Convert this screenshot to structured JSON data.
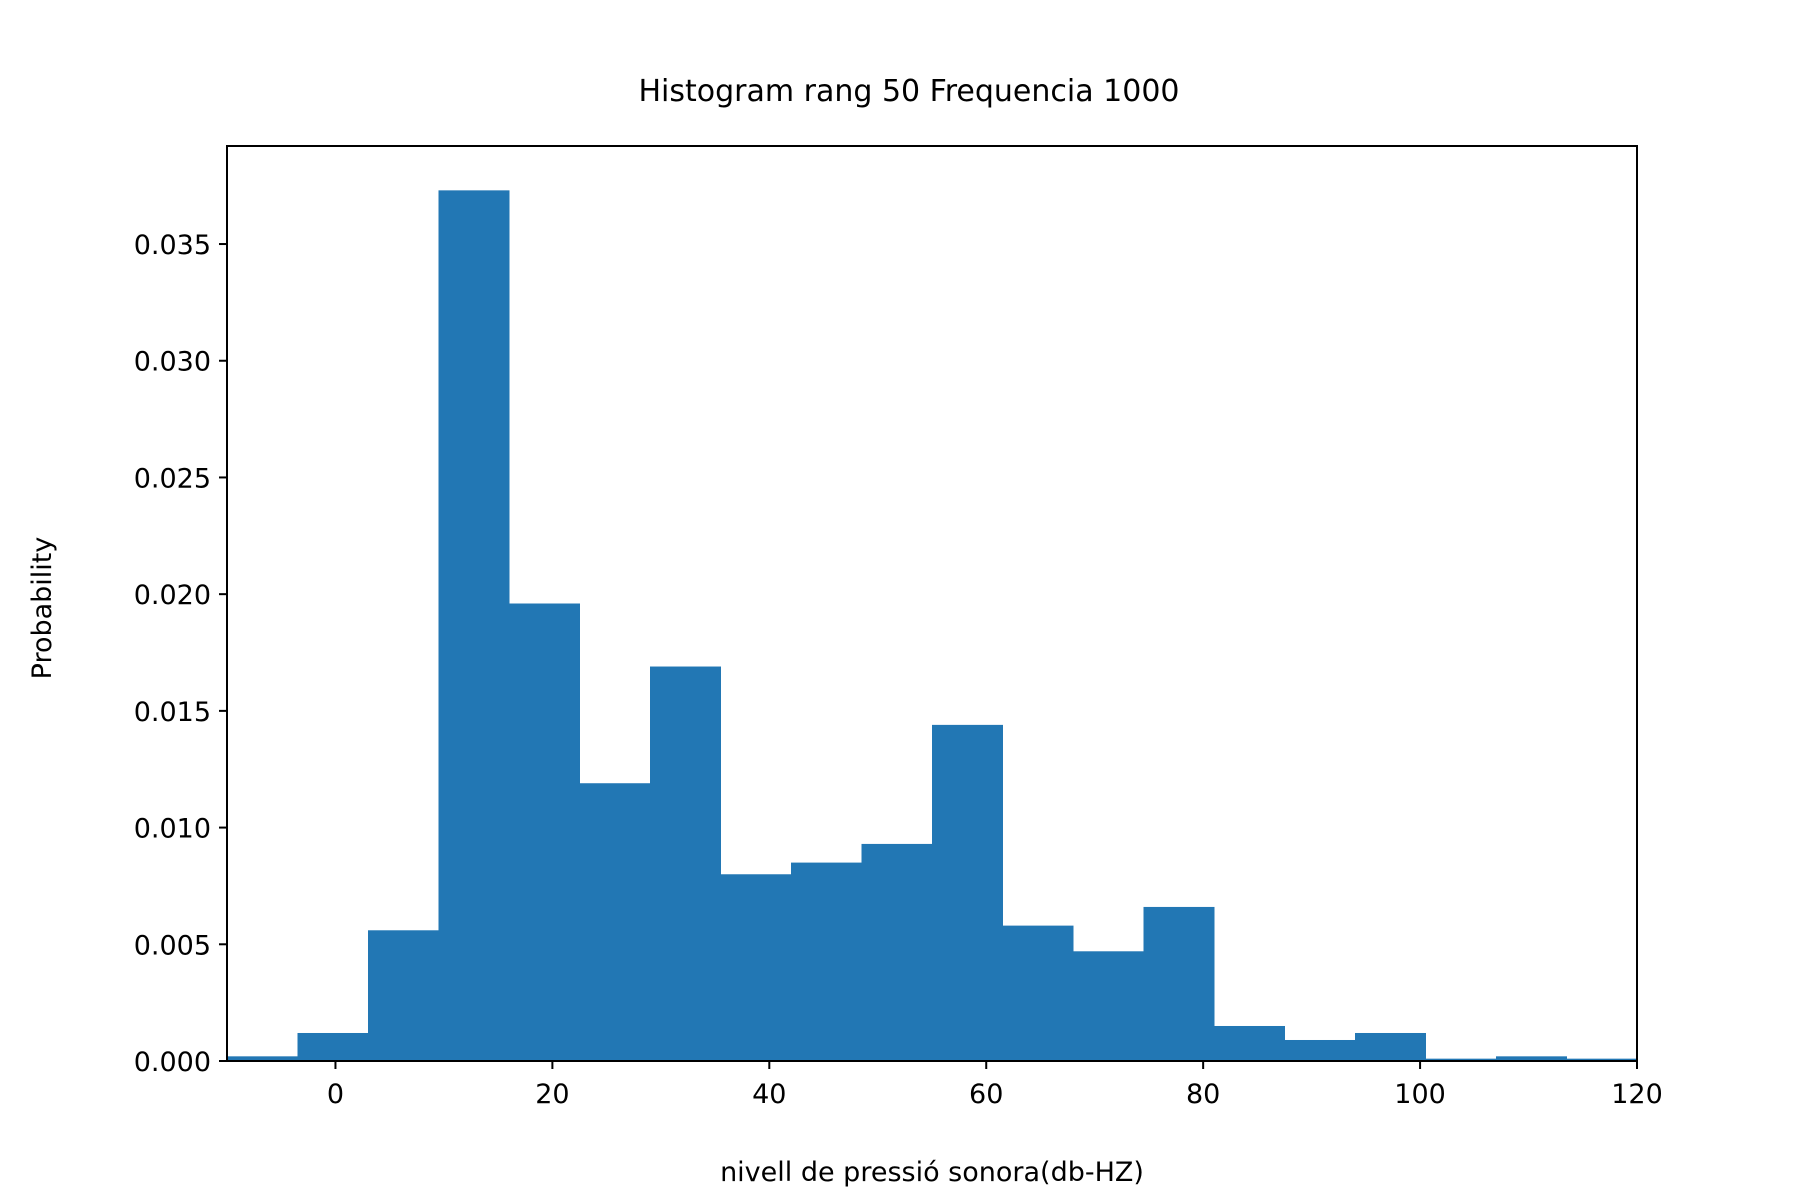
{
  "chart_data": {
    "type": "histogram",
    "title": "Histogram rang 50 Frequencia 1000",
    "xlabel": "nivell de pressió sonora(db-HZ)",
    "ylabel": "Probability",
    "xlim": [
      -10,
      120
    ],
    "ylim": [
      0,
      0.0392
    ],
    "xticks": [
      0,
      20,
      40,
      60,
      80,
      100,
      120
    ],
    "xtick_labels": [
      "0",
      "20",
      "40",
      "60",
      "80",
      "100",
      "120"
    ],
    "yticks": [
      0,
      0.005,
      0.01,
      0.015,
      0.02,
      0.025,
      0.03,
      0.035
    ],
    "ytick_labels": [
      "0.000",
      "0.005",
      "0.010",
      "0.015",
      "0.020",
      "0.025",
      "0.030",
      "0.035"
    ],
    "bin_edges": [
      -10.0,
      -3.5,
      3.0,
      9.5,
      16.0,
      22.5,
      29.0,
      35.5,
      42.0,
      48.5,
      55.0,
      61.5,
      68.0,
      74.5,
      81.0,
      87.5,
      94.0,
      100.5,
      107.0,
      113.5,
      120.0
    ],
    "values": [
      0.0002,
      0.0012,
      0.0056,
      0.0373,
      0.0196,
      0.0119,
      0.0169,
      0.008,
      0.0085,
      0.0093,
      0.0144,
      0.0058,
      0.0047,
      0.0066,
      0.0015,
      0.0009,
      0.0012,
      0.0001,
      0.0002,
      0.0001
    ],
    "grid": false,
    "bar_color": "#2277b4"
  }
}
